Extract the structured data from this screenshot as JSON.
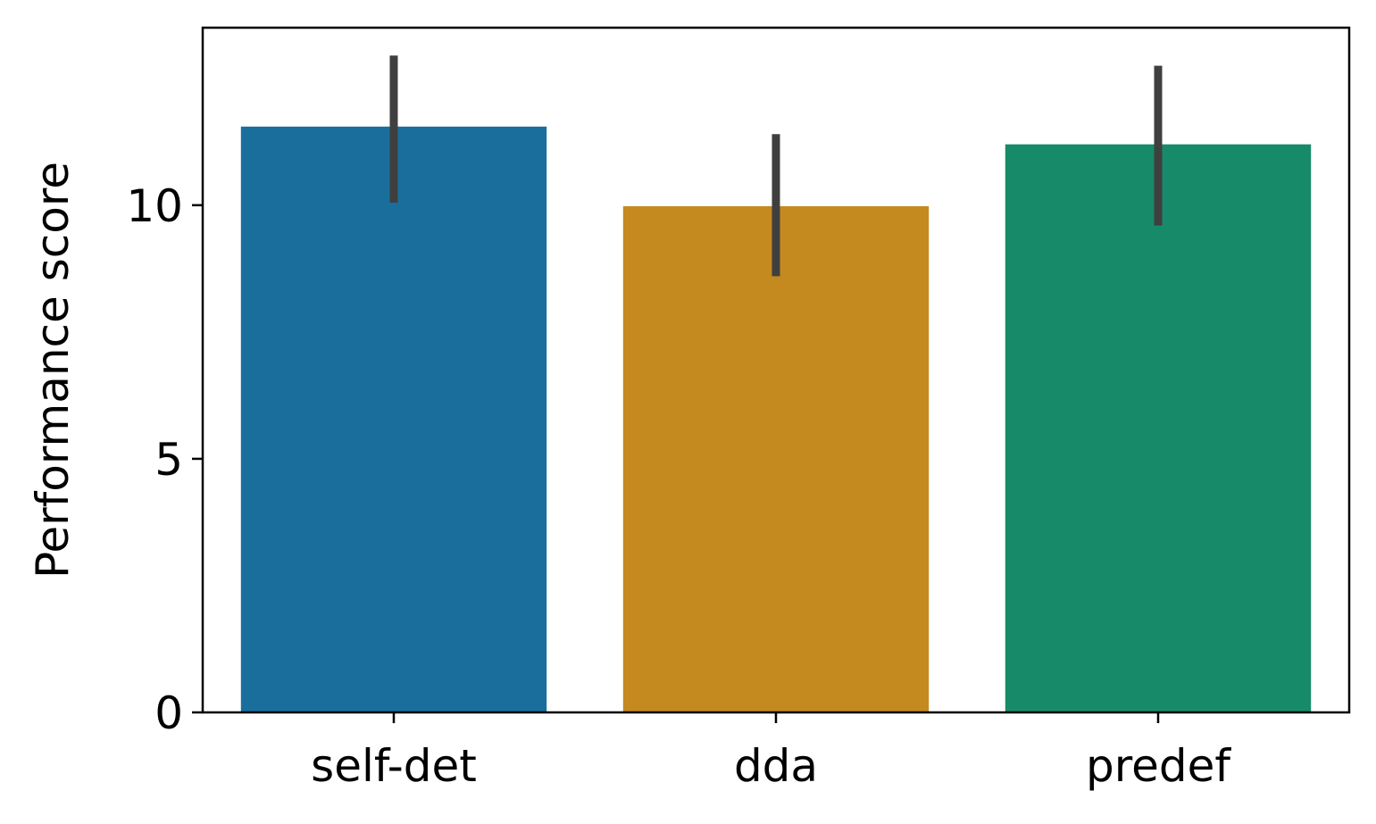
{
  "chart_data": {
    "type": "bar",
    "categories": [
      "self-det",
      "dda",
      "predef"
    ],
    "values": [
      11.55,
      9.98,
      11.2
    ],
    "error_bars": [
      {
        "low": 10.05,
        "high": 12.95
      },
      {
        "low": 8.6,
        "high": 11.4
      },
      {
        "low": 9.6,
        "high": 12.75
      }
    ],
    "colors": [
      "#1a6e9c",
      "#c4891f",
      "#178b69"
    ],
    "error_bar_color": "#3f3f3f",
    "title": "",
    "xlabel": "",
    "ylabel": "Performance score",
    "ylim": [
      0,
      13.5
    ],
    "yticks": [
      0,
      5,
      10
    ],
    "grid": false,
    "legend": "none"
  }
}
